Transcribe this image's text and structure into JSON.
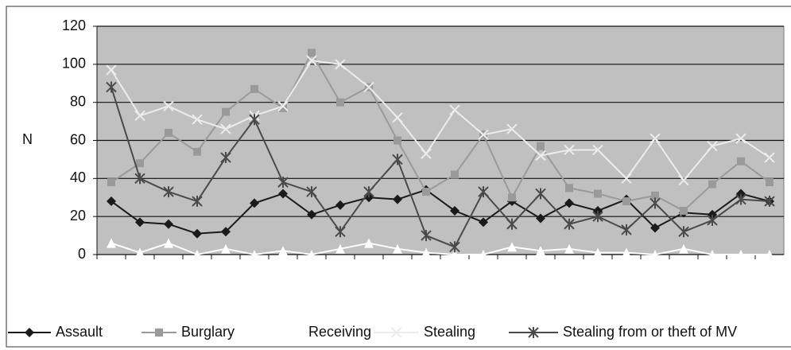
{
  "chart_data": {
    "type": "line",
    "ylabel": "N",
    "categories": [
      null,
      null,
      null,
      null,
      null,
      null,
      null,
      null,
      null,
      null,
      null,
      null,
      null,
      null,
      null,
      null,
      null,
      null,
      null,
      null,
      null,
      null,
      null,
      null
    ],
    "series": [
      {
        "name": "Assault",
        "color": "#1a1a1a",
        "marker": "diamond",
        "values": [
          28,
          17,
          16,
          11,
          12,
          27,
          32,
          21,
          26,
          30,
          29,
          34,
          23,
          17,
          28,
          19,
          27,
          23,
          29,
          14,
          22,
          21,
          32,
          28
        ]
      },
      {
        "name": "Burglary",
        "color": "#9a9a9a",
        "marker": "square",
        "values": [
          38,
          48,
          64,
          54,
          75,
          87,
          77,
          106,
          80,
          88,
          60,
          33,
          42,
          63,
          30,
          57,
          35,
          32,
          28,
          31,
          23,
          37,
          49,
          38
        ]
      },
      {
        "name": "Receiving",
        "color": "#ffffff",
        "marker": "triangle",
        "values": [
          6,
          1,
          6,
          0,
          3,
          0,
          2,
          0,
          3,
          6,
          3,
          1,
          0,
          0,
          4,
          2,
          3,
          1,
          1,
          0,
          3,
          0,
          0,
          0
        ]
      },
      {
        "name": "Stealing",
        "color": "#ececec",
        "marker": "x",
        "values": [
          97,
          73,
          78,
          71,
          66,
          73,
          78,
          102,
          100,
          88,
          72,
          53,
          76,
          63,
          66,
          52,
          55,
          55,
          40,
          61,
          39,
          57,
          61,
          51
        ]
      },
      {
        "name": "Stealing from or theft of MV",
        "color": "#4a4a4a",
        "marker": "star",
        "values": [
          88,
          40,
          33,
          28,
          51,
          71,
          38,
          33,
          12,
          33,
          50,
          10,
          4,
          33,
          16,
          32,
          16,
          20,
          13,
          27,
          12,
          18,
          29,
          28
        ]
      }
    ],
    "ylim": [
      0,
      120
    ],
    "yticks": [
      0,
      20,
      40,
      60,
      80,
      100,
      120
    ],
    "grid": true
  }
}
